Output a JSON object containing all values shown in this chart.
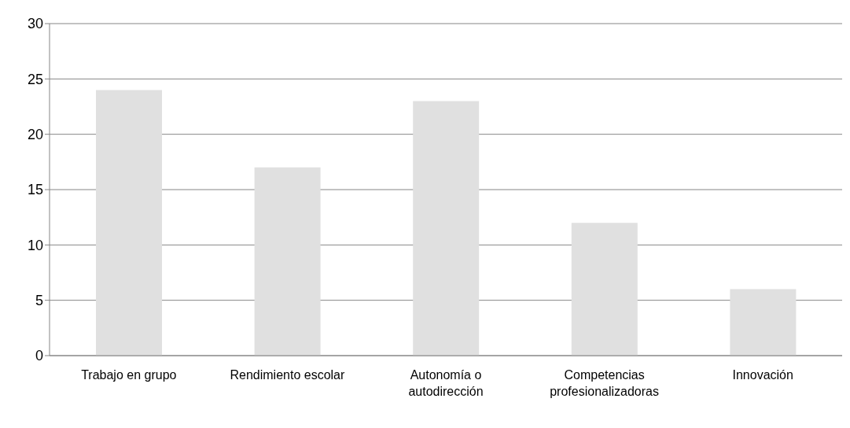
{
  "chart_data": {
    "type": "bar",
    "categories": [
      "Trabajo en grupo",
      "Rendimiento escolar",
      "Autonomía o autodirección",
      "Competencias profesionalizadoras",
      "Innovación"
    ],
    "values": [
      24,
      17,
      23,
      12,
      6
    ],
    "color": "#e0e0e0",
    "ylim": [
      0,
      30
    ],
    "yticks": [
      0,
      5,
      10,
      15,
      20,
      25,
      30
    ],
    "grid": "y"
  }
}
